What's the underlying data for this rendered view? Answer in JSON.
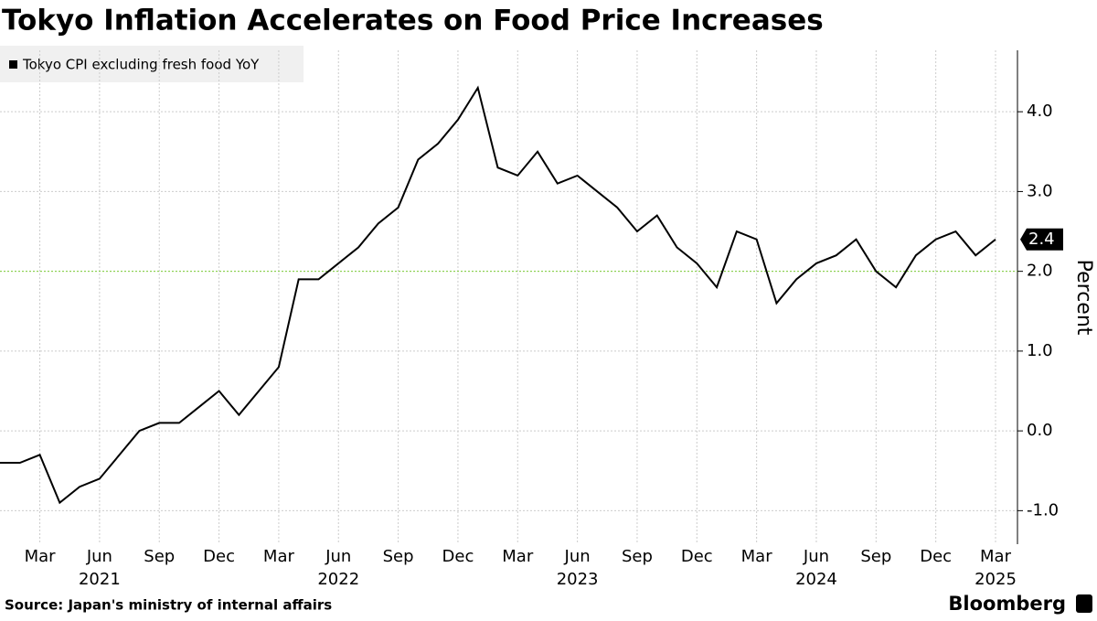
{
  "chart_data": {
    "type": "line",
    "title": "Tokyo Inflation Accelerates on Food Price Increases",
    "y_label": "Percent",
    "source": "Source: Japan's ministry of internal affairs",
    "brand": "Bloomberg",
    "x": [
      "2021-01",
      "2021-02",
      "2021-03",
      "2021-04",
      "2021-05",
      "2021-06",
      "2021-07",
      "2021-08",
      "2021-09",
      "2021-10",
      "2021-11",
      "2021-12",
      "2022-01",
      "2022-02",
      "2022-03",
      "2022-04",
      "2022-05",
      "2022-06",
      "2022-07",
      "2022-08",
      "2022-09",
      "2022-10",
      "2022-11",
      "2022-12",
      "2023-01",
      "2023-02",
      "2023-03",
      "2023-04",
      "2023-05",
      "2023-06",
      "2023-07",
      "2023-08",
      "2023-09",
      "2023-10",
      "2023-11",
      "2023-12",
      "2024-01",
      "2024-02",
      "2024-03",
      "2024-04",
      "2024-05",
      "2024-06",
      "2024-07",
      "2024-08",
      "2024-09",
      "2024-10",
      "2024-11",
      "2024-12",
      "2025-01",
      "2025-02",
      "2025-03"
    ],
    "series": [
      {
        "name": "Tokyo CPI excluding fresh food YoY",
        "color": "#000000",
        "values": [
          -0.4,
          -0.4,
          -0.3,
          -0.9,
          -0.7,
          -0.6,
          -0.3,
          0.0,
          0.1,
          0.1,
          0.3,
          0.5,
          0.2,
          0.5,
          0.8,
          1.9,
          1.9,
          2.1,
          2.3,
          2.6,
          2.8,
          3.4,
          3.6,
          3.9,
          4.3,
          3.3,
          3.2,
          3.5,
          3.1,
          3.2,
          3.0,
          2.8,
          2.5,
          2.7,
          2.3,
          2.1,
          1.8,
          2.5,
          2.4,
          1.6,
          1.9,
          2.1,
          2.2,
          2.4,
          2.0,
          1.8,
          2.2,
          2.4,
          2.5,
          2.2,
          2.4
        ]
      }
    ],
    "xlim": [
      "2021-01",
      "2025-03"
    ],
    "xticks": [
      {
        "value": "2021-03",
        "label": "Mar"
      },
      {
        "value": "2021-06",
        "label": "Jun"
      },
      {
        "value": "2021-09",
        "label": "Sep"
      },
      {
        "value": "2021-12",
        "label": "Dec"
      },
      {
        "value": "2022-03",
        "label": "Mar"
      },
      {
        "value": "2022-06",
        "label": "Jun"
      },
      {
        "value": "2022-09",
        "label": "Sep"
      },
      {
        "value": "2022-12",
        "label": "Dec"
      },
      {
        "value": "2023-03",
        "label": "Mar"
      },
      {
        "value": "2023-06",
        "label": "Jun"
      },
      {
        "value": "2023-09",
        "label": "Sep"
      },
      {
        "value": "2023-12",
        "label": "Dec"
      },
      {
        "value": "2024-03",
        "label": "Mar"
      },
      {
        "value": "2024-06",
        "label": "Jun"
      },
      {
        "value": "2024-09",
        "label": "Sep"
      },
      {
        "value": "2024-12",
        "label": "Dec"
      },
      {
        "value": "2025-03",
        "label": "Mar"
      }
    ],
    "x_year_labels": [
      {
        "value": "2021-06",
        "label": "2021"
      },
      {
        "value": "2022-06",
        "label": "2022"
      },
      {
        "value": "2023-06",
        "label": "2023"
      },
      {
        "value": "2024-06",
        "label": "2024"
      },
      {
        "value": "2025-03",
        "label": "2025"
      }
    ],
    "ylim": [
      -1.42,
      4.77
    ],
    "yticks": [
      {
        "value": -1,
        "label": "-1.0"
      },
      {
        "value": 0,
        "label": "0.0"
      },
      {
        "value": 1,
        "label": "1.0"
      },
      {
        "value": 2,
        "label": "2.0"
      },
      {
        "value": 3,
        "label": "3.0"
      },
      {
        "value": 4,
        "label": "4.0"
      }
    ],
    "reference_line": {
      "value": 2,
      "color": "#7fd13b"
    },
    "grid": true
  }
}
